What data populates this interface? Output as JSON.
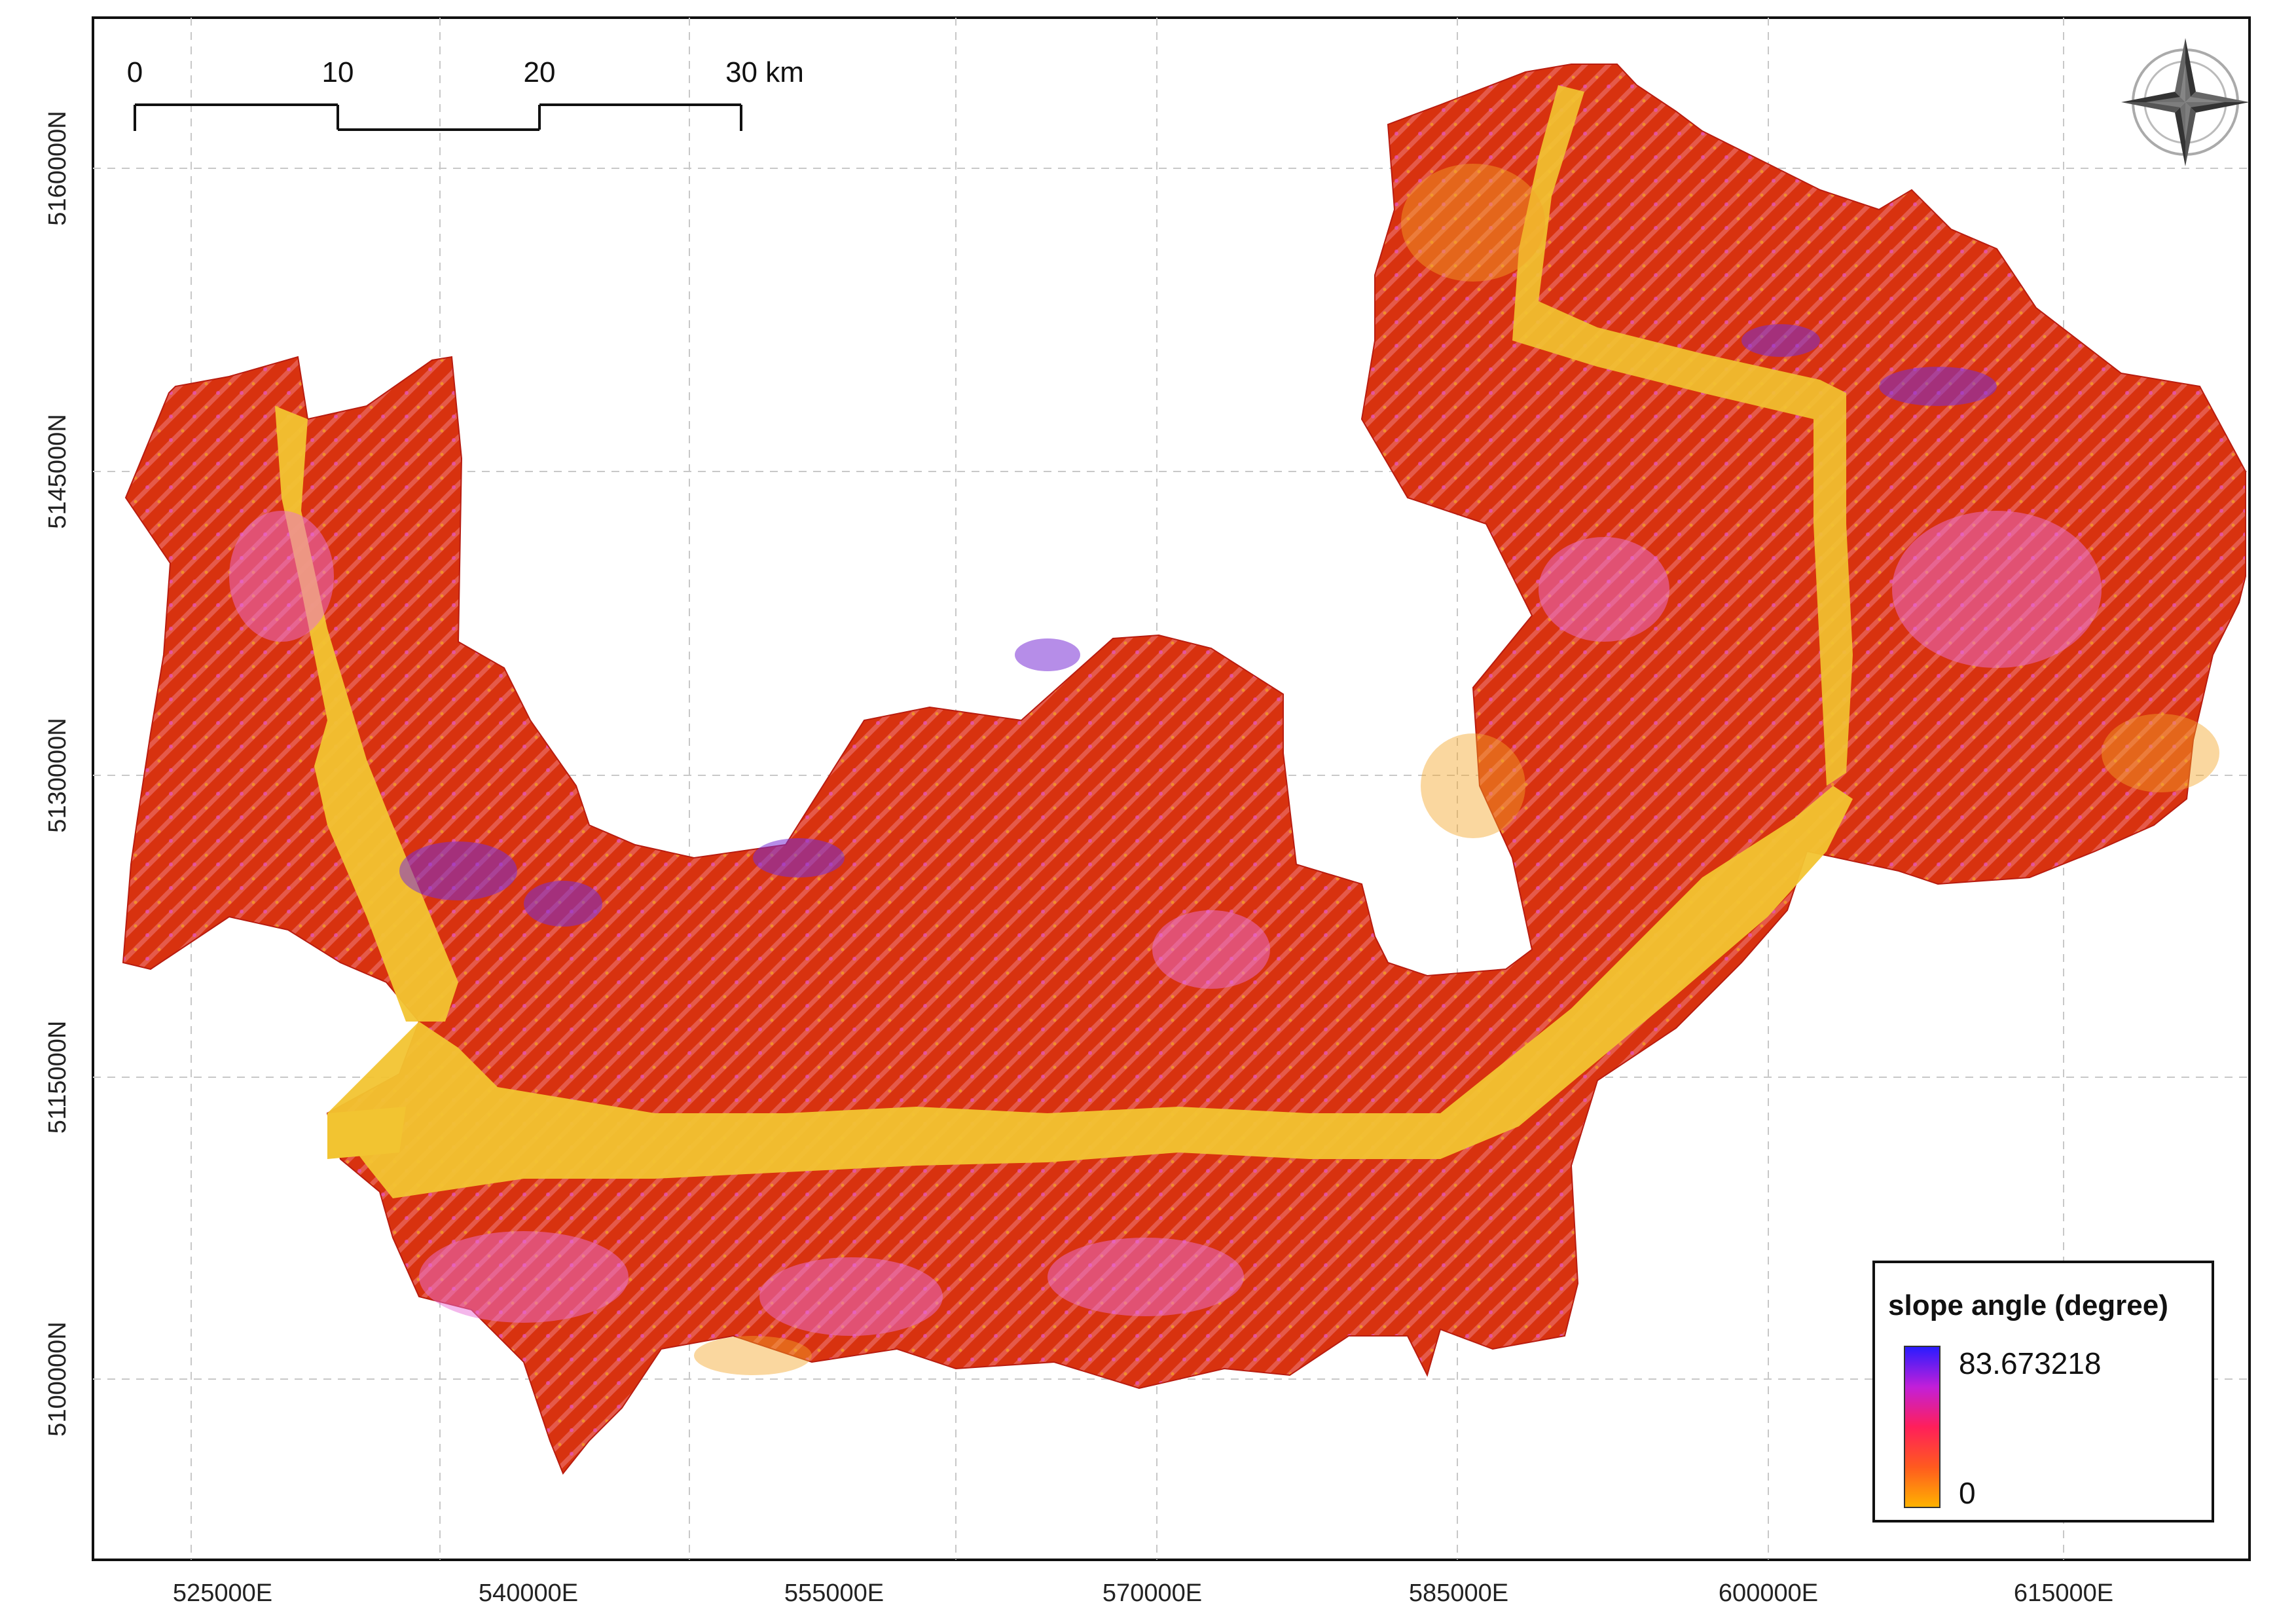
{
  "map": {
    "easting_ticks": [
      "525000E",
      "540000E",
      "555000E",
      "570000E",
      "585000E",
      "600000E",
      "615000E"
    ],
    "northing_ticks": [
      "5160000N",
      "5145000N",
      "5130000N",
      "5115000N",
      "5100000N"
    ],
    "grid": true,
    "north_arrow": "compass-rose-icon"
  },
  "scale_bar": {
    "labels": [
      "0",
      "10",
      "20",
      "30 km"
    ]
  },
  "legend": {
    "title": "slope angle (degree)",
    "max_label": "83.673218",
    "min_label": "0",
    "colors": {
      "ramp_top": "#2a1cff",
      "ramp_mid_upper": "#c21fd9",
      "ramp_mid": "#ff1f5a",
      "ramp_mid_lower": "#ff5a1f",
      "ramp_bottom": "#ffb200"
    }
  },
  "colors": {
    "valley_floor": "#f2c431",
    "slope_low": "#f4a02c",
    "slope_mid": "#d91c10",
    "slope_high": "#e45ad8",
    "slope_steep": "#6a2bd8"
  }
}
